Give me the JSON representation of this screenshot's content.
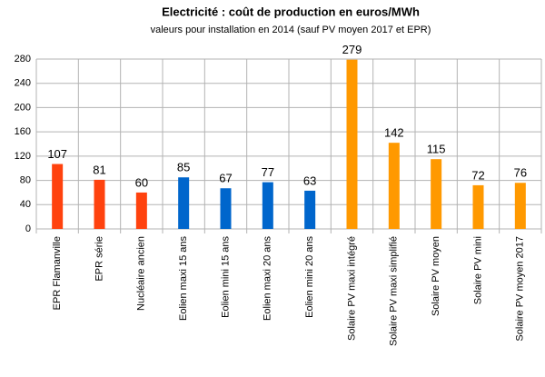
{
  "chart_data": {
    "type": "bar",
    "title": "Electricité : coût de production en euros/MWh",
    "subtitle": "valeurs pour installation en 2014 (sauf PV moyen 2017 et EPR)",
    "categories": [
      "EPR Flamanville",
      "EPR série",
      "Nucléaire ancien",
      "Eolien maxi 15 ans",
      "Eolien mini 15 ans",
      "Eolien maxi 20 ans",
      "Eolien mini 20 ans",
      "Solaire PV maxi intégré",
      "Solaire PV maxi simplifié",
      "Solaire PV moyen",
      "Solaire PV mini",
      "Solaire PV moyen 2017"
    ],
    "values": [
      107,
      81,
      60,
      85,
      67,
      77,
      63,
      279,
      142,
      115,
      72,
      76
    ],
    "colors": [
      "#ff420e",
      "#ff420e",
      "#ff420e",
      "#0066cc",
      "#0066cc",
      "#0066cc",
      "#0066cc",
      "#ff9900",
      "#ff9900",
      "#ff9900",
      "#ff9900",
      "#ff9900"
    ],
    "ylim": [
      0,
      280
    ],
    "yticks": [
      0,
      40,
      80,
      120,
      160,
      200,
      240,
      280
    ],
    "grid": true
  }
}
